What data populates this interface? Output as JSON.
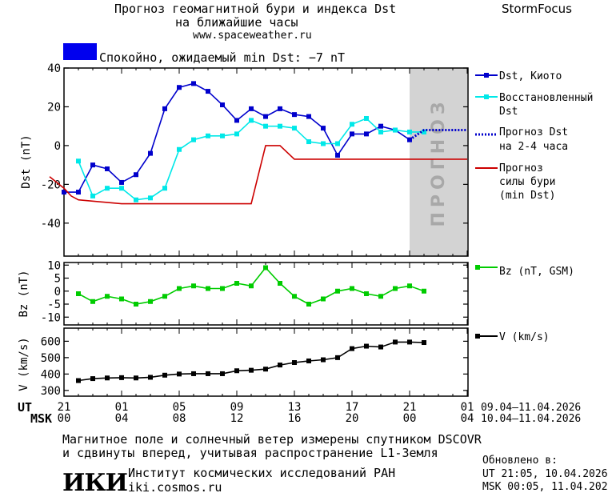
{
  "header": {
    "title_line1": "Прогноз геомагнитной бури и индекса Dst",
    "title_line2": "на ближайшие часы",
    "site": "www.spaceweather.ru",
    "brand": "StormFocus",
    "status_text": "Спокойно, ожидаемый min Dst: −7 nT",
    "status_color": "#0000ee"
  },
  "footer": {
    "note_line1": "Магнитное поле и солнечный ветер измерены спутником DSCOVR",
    "note_line2": "и сдвинуты вперед, учитывая распространение L1-Земля",
    "institute": "Институт космических исследований РАН",
    "institute_url": "iki.cosmos.ru",
    "logo_text": "ИКИ",
    "updated_label": "Обновлено в:",
    "updated_ut": "UT  21:05, 10.04.2026",
    "updated_msk": "MSK 00:05, 11.04.2026"
  },
  "time_axis": {
    "ut_label": "UT",
    "msk_label": "MSK",
    "ut_ticks": [
      "21",
      "01",
      "05",
      "09",
      "13",
      "17",
      "21",
      "01"
    ],
    "msk_ticks": [
      "00",
      "04",
      "08",
      "12",
      "16",
      "20",
      "00",
      "04"
    ],
    "ut_range": "09.04–11.04.2026",
    "msk_range": "10.04–11.04.2026"
  },
  "chart_data": [
    {
      "type": "line",
      "ylabel": "Dst (nT)",
      "ylim": [
        -57,
        40
      ],
      "yticks": [
        40,
        20,
        0,
        -20,
        -40
      ],
      "forecast_label": "ПРОГНОЗ",
      "forecast_shade_x": [
        24,
        28
      ],
      "series": [
        {
          "name": "Dst, Киото",
          "color": "#0000cc",
          "marker": "square",
          "x": [
            0,
            1,
            2,
            3,
            4,
            5,
            6,
            7,
            8,
            9,
            10,
            11,
            12,
            13,
            14,
            15,
            16,
            17,
            18,
            19,
            20,
            21,
            22,
            23,
            24
          ],
          "y": [
            -24,
            -24,
            -10,
            -12,
            -19,
            -15,
            -4,
            19,
            30,
            32,
            28,
            21,
            13,
            19,
            15,
            19,
            16,
            15,
            9,
            -5,
            6,
            6,
            10,
            8,
            3
          ]
        },
        {
          "name": "Восстановленный Dst",
          "color": "#00e8e8",
          "marker": "square",
          "x": [
            1,
            2,
            3,
            4,
            5,
            6,
            7,
            8,
            9,
            10,
            11,
            12,
            13,
            14,
            15,
            16,
            17,
            18,
            19,
            20,
            21,
            22,
            23,
            24,
            25
          ],
          "y": [
            -8,
            -26,
            -22,
            -22,
            -28,
            -27,
            -22,
            -2,
            3,
            5,
            5,
            6,
            13,
            10,
            10,
            9,
            2,
            1,
            1,
            11,
            14,
            7,
            8,
            7,
            7
          ]
        },
        {
          "name": "Прогноз Dst на 2-4 часа",
          "color": "#0000cc",
          "dashed": true,
          "x": [
            24,
            25,
            26,
            27,
            28
          ],
          "y": [
            3,
            8,
            8,
            8,
            8
          ]
        },
        {
          "name": "Прогноз силы бури (min Dst)",
          "color": "#cc0000",
          "x": [
            -1,
            0,
            0.5,
            1,
            4,
            13,
            14,
            14.5,
            15,
            16,
            28
          ],
          "y": [
            -16,
            -22,
            -26,
            -28,
            -30,
            -30,
            0,
            0,
            0,
            -7,
            -7
          ]
        }
      ]
    },
    {
      "type": "line",
      "ylabel": "Bz (nT)",
      "ylim": [
        -13,
        11
      ],
      "yticks": [
        10,
        5,
        0,
        -5,
        -10
      ],
      "series": [
        {
          "name": "Bz (nT, GSM)",
          "color": "#00cc00",
          "marker": "square",
          "x": [
            1,
            2,
            3,
            4,
            5,
            6,
            7,
            8,
            9,
            10,
            11,
            12,
            13,
            14,
            15,
            16,
            17,
            18,
            19,
            20,
            21,
            22,
            23,
            24,
            25
          ],
          "y": [
            -1,
            -4,
            -2,
            -3,
            -5,
            -4,
            -2,
            1,
            2,
            1,
            1,
            3,
            2,
            9,
            3,
            -2,
            -5,
            -3,
            0,
            1,
            -1,
            -2,
            1,
            2,
            0
          ]
        }
      ]
    },
    {
      "type": "line",
      "ylabel": "V (km/s)",
      "ylim": [
        265,
        680
      ],
      "yticks": [
        600,
        500,
        400,
        300
      ],
      "series": [
        {
          "name": "V (km/s)",
          "color": "#000000",
          "marker": "square",
          "x": [
            1,
            2,
            3,
            4,
            5,
            6,
            7,
            8,
            9,
            10,
            11,
            12,
            13,
            14,
            15,
            16,
            17,
            18,
            19,
            20,
            21,
            22,
            23,
            24,
            25
          ],
          "y": [
            360,
            372,
            376,
            378,
            376,
            380,
            393,
            400,
            402,
            402,
            402,
            420,
            423,
            430,
            455,
            470,
            480,
            487,
            500,
            555,
            570,
            565,
            595,
            595,
            592
          ]
        }
      ]
    }
  ]
}
